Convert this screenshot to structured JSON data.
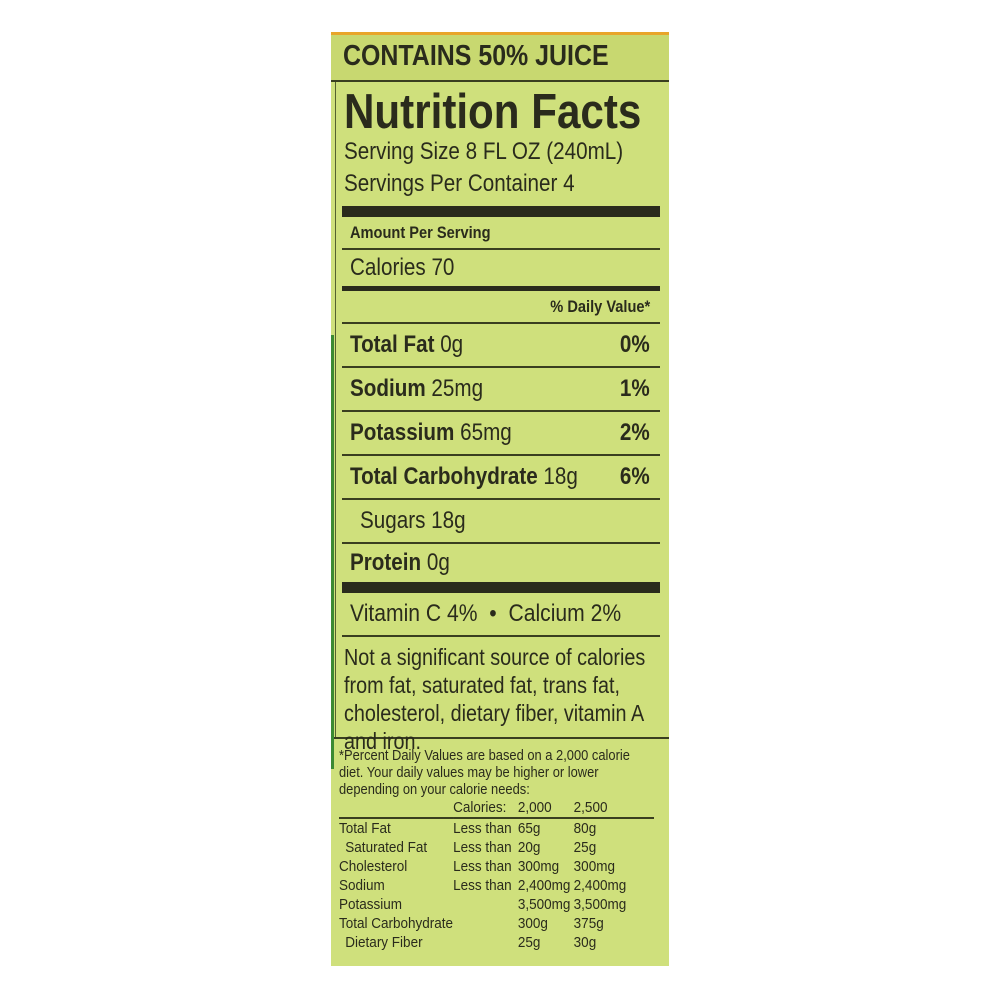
{
  "header": "CONTAINS 50% JUICE",
  "title": "Nutrition Facts",
  "serving_size": "Serving Size 8 FL OZ (240mL)",
  "servings_per_container": "Servings Per Container 4",
  "amount_per_serving": "Amount Per Serving",
  "calories": "Calories 70",
  "daily_value_header": "% Daily Value*",
  "nutrients": [
    {
      "name": "Total Fat",
      "amount": "0g",
      "dv": "0%"
    },
    {
      "name": "Sodium",
      "amount": "25mg",
      "dv": "1%"
    },
    {
      "name": "Potassium",
      "amount": "65mg",
      "dv": "2%"
    },
    {
      "name": "Total Carbohydrate",
      "amount": "18g",
      "dv": "6%"
    },
    {
      "name": "Sugars",
      "amount": "18g",
      "dv": ""
    },
    {
      "name": "Protein",
      "amount": "0g",
      "dv": ""
    }
  ],
  "vitamins": {
    "vitamin_c": "Vitamin C 4%",
    "separator": "•",
    "calcium": "Calcium 2%"
  },
  "not_significant": "Not a significant source of calories from fat, saturated fat, trans fat, cholesterol, dietary fiber, vitamin A and iron.",
  "footnote": "*Percent Daily Values are based on a 2,000 calorie diet. Your daily values may be higher or lower depending on your calorie needs:",
  "reference_table": {
    "header": [
      "",
      "Calories:",
      "2,000",
      "2,500"
    ],
    "rows": [
      [
        "Total Fat",
        "Less than",
        "65g",
        "80g"
      ],
      [
        "Saturated Fat",
        "Less than",
        "20g",
        "25g"
      ],
      [
        "Cholesterol",
        "Less than",
        "300mg",
        "300mg"
      ],
      [
        "Sodium",
        "Less than",
        "2,400mg",
        "2,400mg"
      ],
      [
        "Potassium",
        "",
        "3,500mg",
        "3,500mg"
      ],
      [
        "Total Carbohydrate",
        "",
        "300g",
        "375g"
      ],
      [
        "Dietary Fiber",
        "",
        "25g",
        "30g"
      ]
    ]
  },
  "colors": {
    "panel": "#cfe07c",
    "text": "#2a2b1c",
    "top_edge": "#e8a52a",
    "side_strip": "#3b8a32"
  }
}
